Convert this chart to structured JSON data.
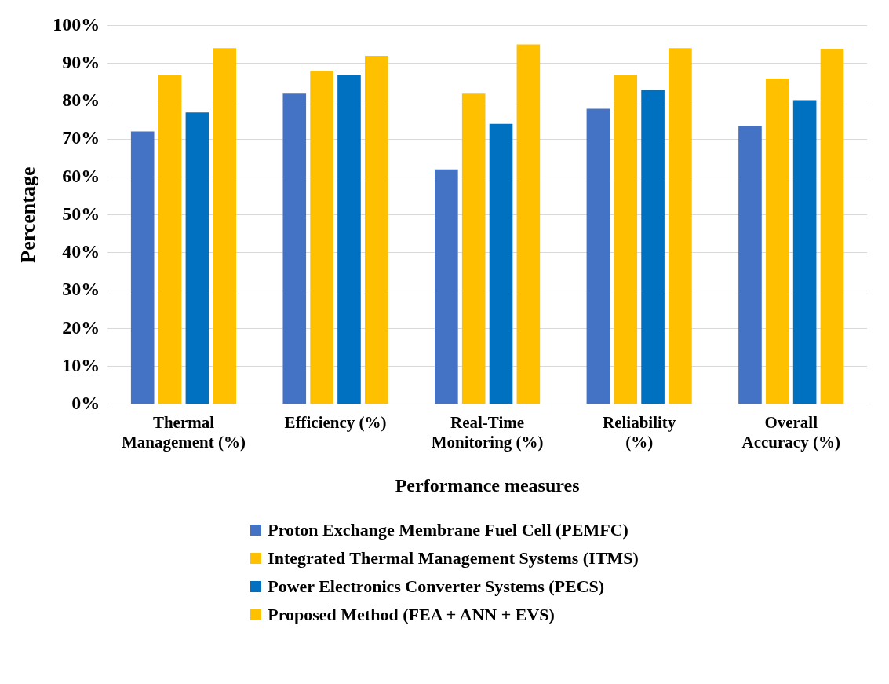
{
  "chart_data": {
    "type": "bar",
    "xlabel": "Performance measures",
    "ylabel": "Percentage",
    "categories": [
      "Thermal Management (%)",
      "Efficiency (%)",
      "Real-Time Monitoring (%)",
      "Reliability (%)",
      "Overall Accuracy (%)"
    ],
    "series": [
      {
        "name": "Proton Exchange Membrane Fuel Cell (PEMFC)",
        "color": "#4472c4",
        "values": [
          72,
          82,
          62,
          78,
          73.5
        ]
      },
      {
        "name": "Integrated Thermal Management Systems (ITMS)",
        "color": "#ffc000",
        "values": [
          87,
          88,
          82,
          87,
          86
        ]
      },
      {
        "name": "Power Electronics Converter Systems (PECS)",
        "color": "#0070c0",
        "values": [
          77,
          87,
          74,
          83,
          80.3
        ]
      },
      {
        "name": "Proposed Method (FEA + ANN + EVS)",
        "color": "#ffc000",
        "values": [
          94,
          92,
          95,
          94,
          93.8
        ]
      }
    ],
    "ylim": [
      0,
      100
    ],
    "yticks": [
      {
        "value": 0,
        "label": "0%"
      },
      {
        "value": 10,
        "label": "10%"
      },
      {
        "value": 20,
        "label": "20%"
      },
      {
        "value": 30,
        "label": "30%"
      },
      {
        "value": 40,
        "label": "40%"
      },
      {
        "value": 50,
        "label": "50%"
      },
      {
        "value": 60,
        "label": "60%"
      },
      {
        "value": 70,
        "label": "70%"
      },
      {
        "value": 80,
        "label": "80%"
      },
      {
        "value": 90,
        "label": "90%"
      },
      {
        "value": 100,
        "label": "100%"
      }
    ],
    "grid": "y",
    "legend": "bottom"
  }
}
